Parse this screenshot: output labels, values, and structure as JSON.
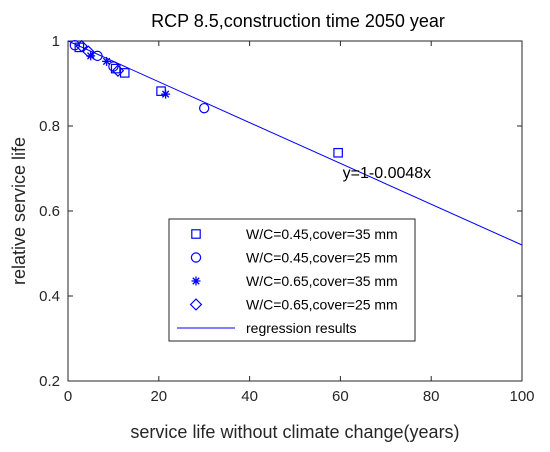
{
  "chart_data": {
    "type": "scatter",
    "title": "RCP 8.5,construction time 2050 year",
    "xlabel": "service life without climate change(years)",
    "ylabel": "relative service life",
    "xlim": [
      0,
      100
    ],
    "ylim": [
      0.2,
      1
    ],
    "xticks": [
      0,
      20,
      40,
      60,
      80,
      100
    ],
    "yticks": [
      0.2,
      0.4,
      0.6,
      0.8,
      1
    ],
    "grid": false,
    "legend_position": "lower-center",
    "colors": {
      "series": "#0000ff",
      "axes": "#262626"
    },
    "series": [
      {
        "name": "W/C=0.45,cover=35 mm",
        "marker": "square",
        "points": [
          [
            2.5,
            0.985
          ],
          [
            10.5,
            0.935
          ],
          [
            12.5,
            0.925
          ],
          [
            20.5,
            0.882
          ],
          [
            59.5,
            0.737
          ]
        ]
      },
      {
        "name": "W/C=0.45,cover=25 mm",
        "marker": "circle",
        "points": [
          [
            1.5,
            0.99
          ],
          [
            6.5,
            0.965
          ],
          [
            10.0,
            0.94
          ],
          [
            30.0,
            0.842
          ]
        ]
      },
      {
        "name": "W/C=0.65,cover=35 mm",
        "marker": "asterisk",
        "points": [
          [
            5.0,
            0.965
          ],
          [
            8.5,
            0.952
          ],
          [
            21.5,
            0.875
          ]
        ]
      },
      {
        "name": "W/C=0.65,cover=25 mm",
        "marker": "diamond",
        "points": [
          [
            3.0,
            0.988
          ],
          [
            4.5,
            0.975
          ],
          [
            11.0,
            0.93
          ]
        ]
      }
    ],
    "regression": {
      "name": "regression results",
      "intercept": 1,
      "slope": -0.0048,
      "x_range": [
        0,
        100
      ]
    },
    "annotations": [
      {
        "text": "y=1-0.0048x",
        "x": 60.5,
        "y": 0.69
      }
    ]
  }
}
